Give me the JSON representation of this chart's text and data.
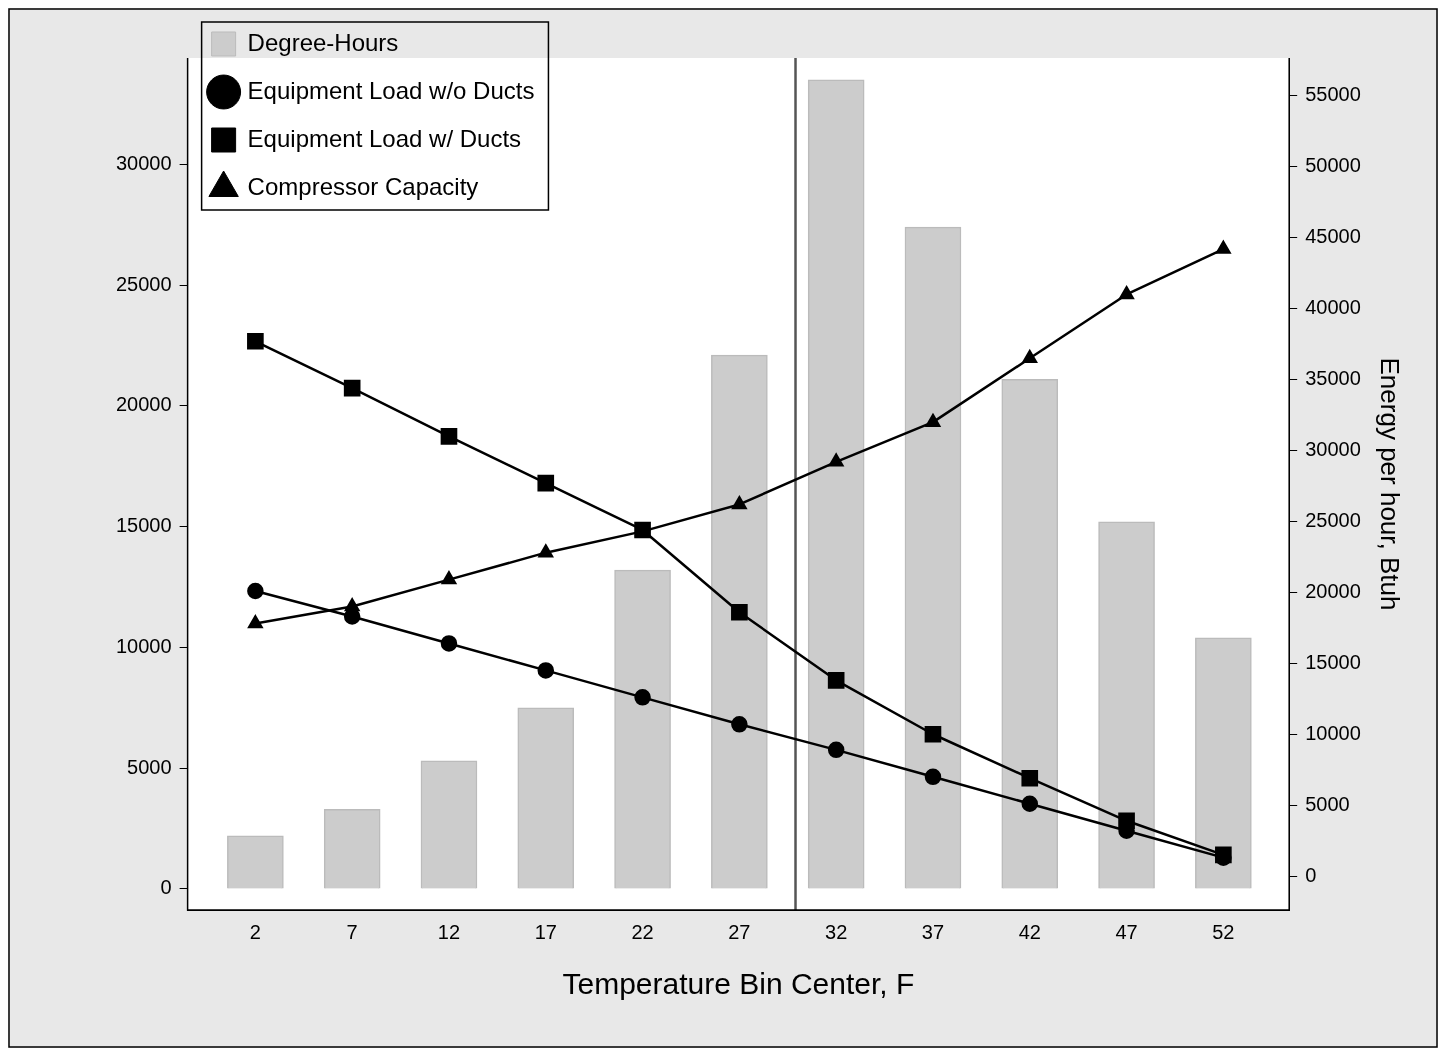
{
  "chart_data": {
    "type": "bar",
    "xlabel": "Temperature Bin Center, F",
    "y2label": "Energy per hour, Btuh",
    "x": [
      2,
      7,
      12,
      17,
      22,
      27,
      32,
      37,
      42,
      47,
      52
    ],
    "xlim": [
      -1.5,
      55.4
    ],
    "xticks": [
      2,
      7,
      12,
      17,
      22,
      27,
      32,
      37,
      42,
      47,
      52
    ],
    "ylim": [
      -870,
      34400
    ],
    "yticks": [
      0,
      5000,
      10000,
      15000,
      20000,
      25000,
      30000
    ],
    "y2lim": [
      -2390,
      57670
    ],
    "y2ticks": [
      0,
      5000,
      10000,
      15000,
      20000,
      25000,
      30000,
      35000,
      40000,
      45000,
      50000,
      55000
    ],
    "legend": "top left",
    "grid": false,
    "ref_lines": [
      {
        "axis": "x",
        "value": 29.9,
        "color": "#555555"
      }
    ],
    "series": [
      {
        "name": "Degree-Hours",
        "color": "#cccccc",
        "values": [
          2200,
          3300,
          5300,
          7500,
          13200,
          22100,
          33500,
          27400,
          21100,
          15200,
          10400
        ]
      },
      {
        "name": "Equipment Load w/o Ducts",
        "type": "line",
        "axis": "y2",
        "marker": "circle",
        "color": "#000000",
        "values": [
          20100,
          18300,
          16400,
          14500,
          12600,
          10700,
          8900,
          7000,
          5100,
          3200,
          1300
        ]
      },
      {
        "name": "Equipment Load w/ Ducts",
        "type": "line",
        "axis": "y2",
        "marker": "square",
        "color": "#000000",
        "values": [
          37700,
          34400,
          31000,
          27700,
          24400,
          18600,
          13800,
          10000,
          6900,
          3900,
          1500
        ]
      },
      {
        "name": "Compressor Capacity",
        "type": "line",
        "axis": "y2",
        "marker": "triangle",
        "color": "#000000",
        "values": [
          17800,
          19000,
          20900,
          22800,
          24300,
          26200,
          29200,
          32000,
          36500,
          41000,
          44200
        ]
      }
    ]
  }
}
